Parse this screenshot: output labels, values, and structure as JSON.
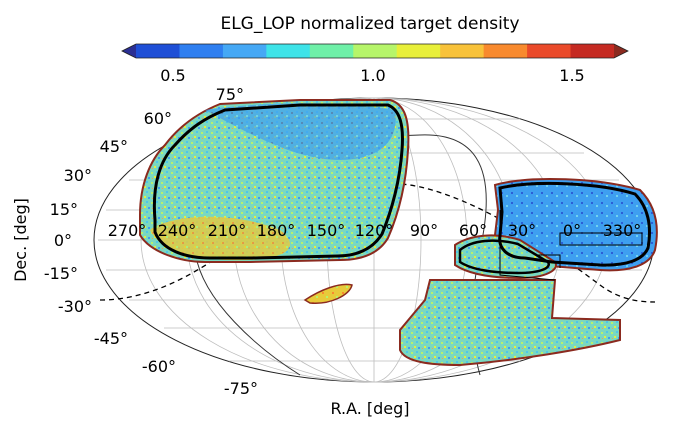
{
  "title": "ELG_LOP normalized target density",
  "colorbar": {
    "ticks": [
      {
        "label": "0.5",
        "value": 0.5
      },
      {
        "label": "1.0",
        "value": 1.0
      },
      {
        "label": "1.5",
        "value": 1.5
      }
    ],
    "range": [
      0.4,
      1.6
    ],
    "colors": [
      "#2b2f94",
      "#1f4fd6",
      "#2f7ff0",
      "#45a8f5",
      "#3ee3e8",
      "#6ff0a8",
      "#b6f56a",
      "#e8ef3a",
      "#f8c23a",
      "#f88a2e",
      "#ea4a2a",
      "#c52a22",
      "#8b2a1f"
    ]
  },
  "axes": {
    "xlabel": "R.A. [deg]",
    "ylabel": "Dec. [deg]",
    "dec_ticks": [
      "75°",
      "60°",
      "45°",
      "30°",
      "15°",
      "0°",
      "-15°",
      "-30°",
      "-45°",
      "-60°",
      "-75°"
    ],
    "ra_ticks": [
      "270°",
      "240°",
      "210°",
      "180°",
      "150°",
      "120°",
      "90°",
      "60°",
      "30°",
      "0°",
      "330°"
    ]
  },
  "colors": {
    "footprint_fill": "#7fe0b8",
    "outline": "#000000",
    "grid": "#bdbdbd"
  }
}
